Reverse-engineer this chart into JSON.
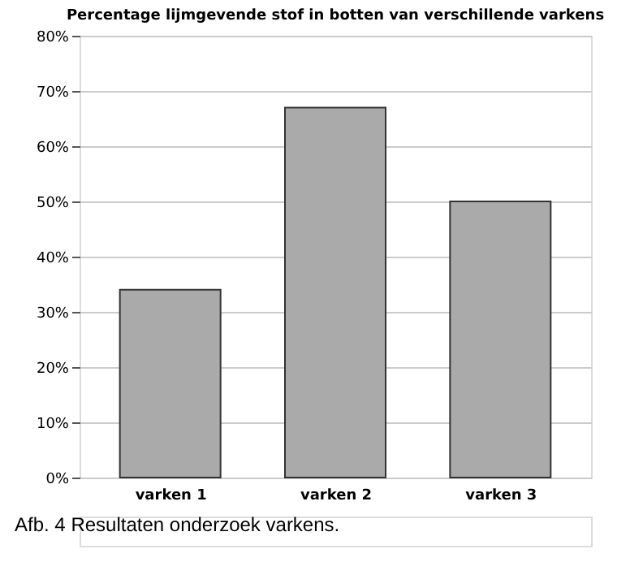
{
  "chart_data": {
    "type": "bar",
    "title": "Percentage lijmgevende stof in botten van verschillende varkens",
    "categories": [
      "varken 1",
      "varken 2",
      "varken 3"
    ],
    "values": [
      34,
      67,
      50
    ],
    "color": "#aaaaaa",
    "ylim": [
      0,
      80
    ],
    "yticks": [
      {
        "value": 0,
        "label": "0%"
      },
      {
        "value": 10,
        "label": "10%"
      },
      {
        "value": 20,
        "label": "20%"
      },
      {
        "value": 30,
        "label": "30%"
      },
      {
        "value": 40,
        "label": "40%"
      },
      {
        "value": 50,
        "label": "50%"
      },
      {
        "value": 60,
        "label": "60%"
      },
      {
        "value": 70,
        "label": "70%"
      },
      {
        "value": 80,
        "label": "80%"
      }
    ],
    "grid": "y",
    "annotations": [
      "Afb. 4  Resultaten onderzoek varkens."
    ]
  }
}
